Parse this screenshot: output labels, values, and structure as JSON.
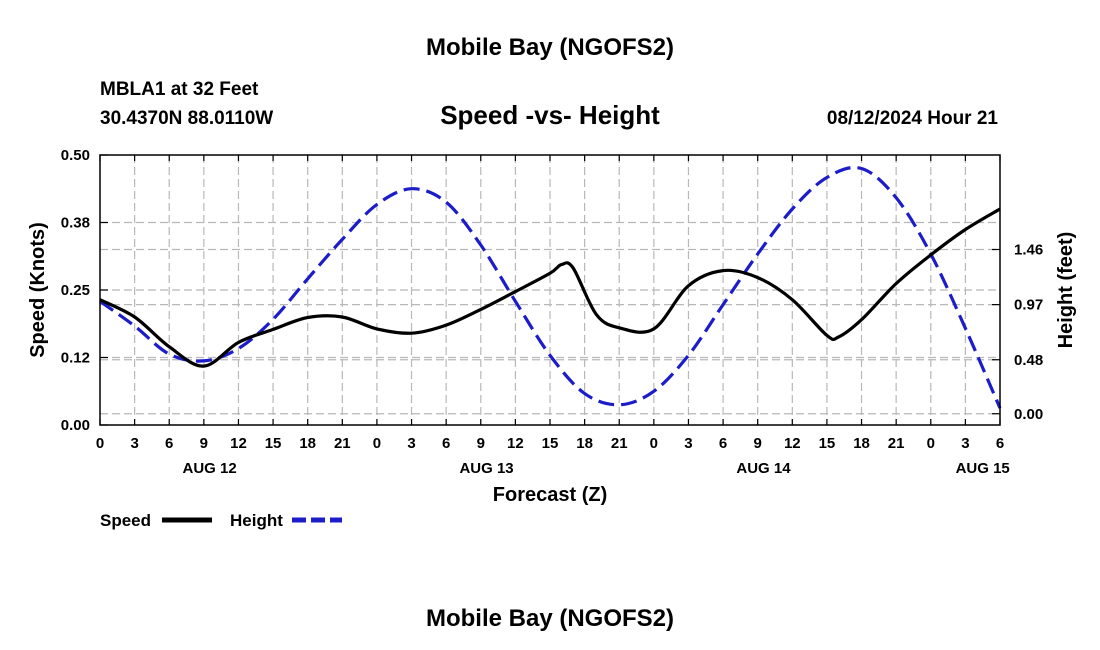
{
  "header": {
    "title": "Mobile Bay (NGOFS2)",
    "station": "MBLA1 at 32 Feet",
    "coords": "30.4370N  88.0110W",
    "datetime": "08/12/2024 Hour 21",
    "footer_title": "Mobile Bay (NGOFS2)"
  },
  "chart_data": {
    "type": "line",
    "title": "Speed -vs- Height",
    "xlabel": "Forecast (Z)",
    "ylabel_left": "Speed (Knots)",
    "ylabel_right": "Height (feet)",
    "x_unit": "hours since AUG 12 00Z",
    "xlim": [
      0,
      78
    ],
    "x_ticks": [
      0,
      3,
      6,
      9,
      12,
      15,
      18,
      21,
      24,
      27,
      30,
      33,
      36,
      39,
      42,
      45,
      48,
      51,
      54,
      57,
      60,
      63,
      66,
      69,
      72,
      75,
      78
    ],
    "x_tick_labels": [
      "0",
      "3",
      "6",
      "9",
      "12",
      "15",
      "18",
      "21",
      "0",
      "3",
      "6",
      "9",
      "12",
      "15",
      "18",
      "21",
      "0",
      "3",
      "6",
      "9",
      "12",
      "15",
      "18",
      "21",
      "0",
      "3",
      "6"
    ],
    "date_labels": [
      {
        "x": 9.5,
        "label": "AUG 12"
      },
      {
        "x": 33.5,
        "label": "AUG 13"
      },
      {
        "x": 57.5,
        "label": "AUG 14"
      },
      {
        "x": 76.5,
        "label": "AUG 15"
      }
    ],
    "left_axis": {
      "ylim": [
        0,
        0.5
      ],
      "ticks": [
        0,
        0.125,
        0.25,
        0.375,
        0.5
      ],
      "tick_labels": [
        "0.00",
        "0.12",
        "0.25",
        "0.38",
        "0.50"
      ]
    },
    "right_axis": {
      "ylim": [
        -0.1,
        2.3
      ],
      "ticks": [
        0,
        0.48,
        0.97,
        1.46
      ],
      "tick_labels": [
        "0.00",
        "0.48",
        "0.97",
        "1.46"
      ]
    },
    "grid": true,
    "legend_position": "bottom-left",
    "series": [
      {
        "name": "Speed",
        "axis": "left",
        "color": "#000000",
        "dash": "solid",
        "points": [
          [
            0,
            0.232
          ],
          [
            3,
            0.2
          ],
          [
            6,
            0.145
          ],
          [
            9,
            0.109
          ],
          [
            12,
            0.153
          ],
          [
            15,
            0.177
          ],
          [
            18,
            0.199
          ],
          [
            21,
            0.2
          ],
          [
            24,
            0.178
          ],
          [
            27,
            0.17
          ],
          [
            30,
            0.185
          ],
          [
            33,
            0.214
          ],
          [
            36,
            0.247
          ],
          [
            39,
            0.281
          ],
          [
            40,
            0.297
          ],
          [
            41,
            0.291
          ],
          [
            43,
            0.205
          ],
          [
            45,
            0.18
          ],
          [
            48,
            0.178
          ],
          [
            51,
            0.258
          ],
          [
            54,
            0.286
          ],
          [
            57,
            0.273
          ],
          [
            60,
            0.232
          ],
          [
            63,
            0.166
          ],
          [
            64,
            0.163
          ],
          [
            66,
            0.195
          ],
          [
            69,
            0.262
          ],
          [
            72,
            0.315
          ],
          [
            75,
            0.362
          ],
          [
            78,
            0.4
          ]
        ]
      },
      {
        "name": "Height",
        "axis": "right",
        "color": "#1c1cc9",
        "dash": "dashed",
        "points": [
          [
            0,
            1.0
          ],
          [
            3,
            0.78
          ],
          [
            6,
            0.53
          ],
          [
            9,
            0.47
          ],
          [
            12,
            0.58
          ],
          [
            15,
            0.84
          ],
          [
            18,
            1.2
          ],
          [
            21,
            1.55
          ],
          [
            24,
            1.86
          ],
          [
            27,
            2.0
          ],
          [
            30,
            1.88
          ],
          [
            33,
            1.5
          ],
          [
            36,
            1.0
          ],
          [
            39,
            0.52
          ],
          [
            42,
            0.18
          ],
          [
            45,
            0.08
          ],
          [
            48,
            0.2
          ],
          [
            51,
            0.52
          ],
          [
            54,
            0.97
          ],
          [
            57,
            1.42
          ],
          [
            60,
            1.82
          ],
          [
            63,
            2.1
          ],
          [
            66,
            2.18
          ],
          [
            69,
            1.92
          ],
          [
            72,
            1.42
          ],
          [
            75,
            0.76
          ],
          [
            78,
            0.05
          ]
        ]
      }
    ]
  }
}
